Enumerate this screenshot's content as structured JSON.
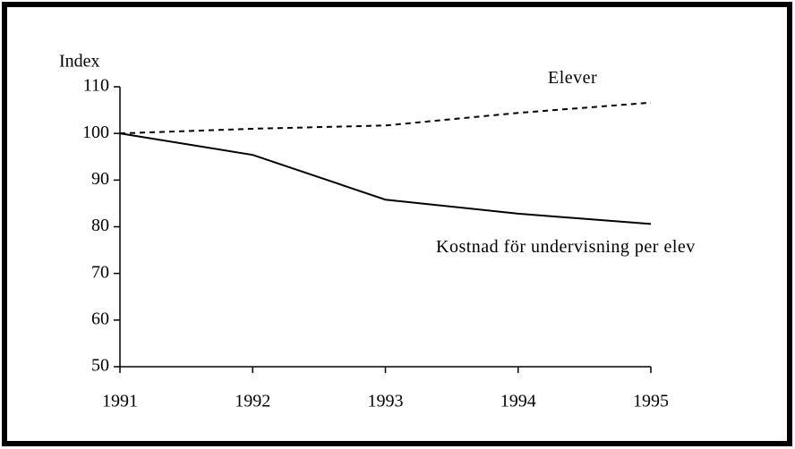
{
  "chart_data": {
    "type": "line",
    "ylabel": "Index",
    "x": [
      1991,
      1992,
      1993,
      1994,
      1995
    ],
    "xlim": [
      1991,
      1995
    ],
    "xticks": [
      1991,
      1992,
      1993,
      1994,
      1995
    ],
    "ylim": [
      50,
      110
    ],
    "yticks": [
      50,
      60,
      70,
      80,
      90,
      100,
      110
    ],
    "series": [
      {
        "name": "Elever",
        "color": "#000000",
        "dash": true,
        "values": [
          100,
          101,
          101.7,
          104.4,
          106.6
        ]
      },
      {
        "name": "Kostnad för undervisning per elev",
        "color": "#000000",
        "dash": false,
        "values": [
          100,
          95.4,
          85.8,
          82.8,
          80.6
        ]
      }
    ]
  }
}
